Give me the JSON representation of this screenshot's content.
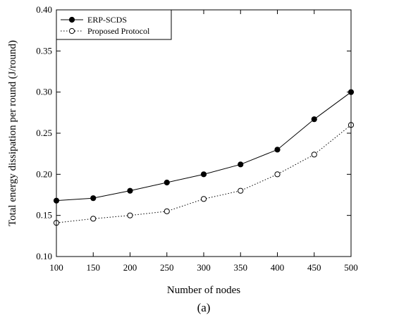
{
  "chart_data": {
    "type": "line",
    "title": "",
    "xlabel": "Number of nodes",
    "ylabel": "Total energy dissipation per round (J/round)",
    "caption": "(a)",
    "x": [
      100,
      150,
      200,
      250,
      300,
      350,
      400,
      450,
      500
    ],
    "xlim": [
      100,
      500
    ],
    "ylim": [
      0.1,
      0.4
    ],
    "xticks": [
      "100",
      "150",
      "200",
      "250",
      "300",
      "350",
      "400",
      "450",
      "500"
    ],
    "yticks": [
      "0.10",
      "0.15",
      "0.20",
      "0.25",
      "0.30",
      "0.35",
      "0.40"
    ],
    "grid": false,
    "legend_position": "top-left",
    "series": [
      {
        "name": "ERP-SCDS",
        "line_style": "solid",
        "marker": "filled-circle",
        "values": [
          0.168,
          0.171,
          0.18,
          0.19,
          0.2,
          0.212,
          0.23,
          0.267,
          0.3
        ]
      },
      {
        "name": "Proposed Protocol",
        "line_style": "dotted",
        "marker": "open-circle",
        "values": [
          0.141,
          0.146,
          0.15,
          0.155,
          0.17,
          0.18,
          0.2,
          0.224,
          0.26
        ]
      }
    ]
  }
}
